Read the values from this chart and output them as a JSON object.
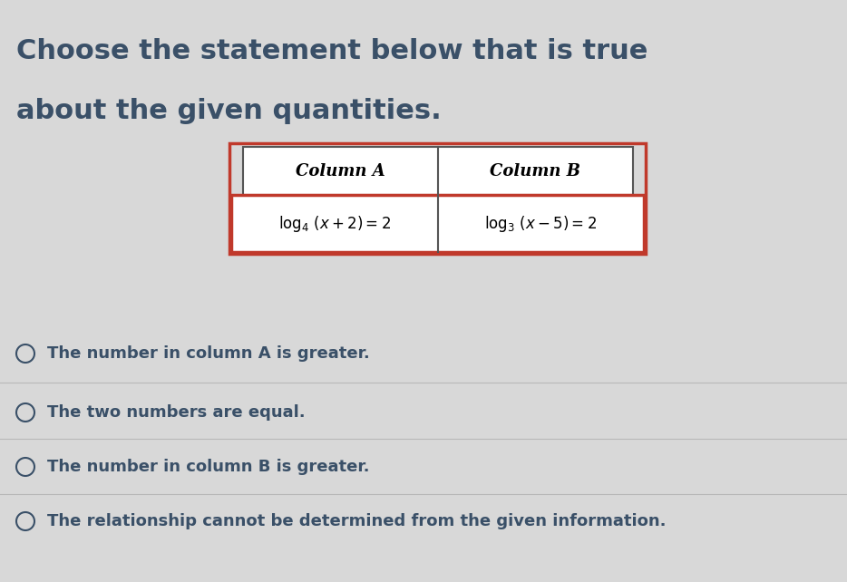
{
  "title_line1": "Choose the statement below that is true",
  "title_line2": "about the given quantities.",
  "col_a_header": "Column A",
  "col_b_header": "Column B",
  "options": [
    "The number in column A is greater.",
    "The two numbers are equal.",
    "The number in column B is greater.",
    "The relationship cannot be determined from the given information."
  ],
  "bg_color": "#d8d8d8",
  "title_color": "#3a5068",
  "table_red_border": "#c0392b",
  "table_gray_border": "#555555",
  "text_color": "#3a5068",
  "option_text_color": "#3a5068",
  "circle_color": "#3a5068",
  "separator_color": "#aaaaaa",
  "title_fontsize": 22,
  "header_fontsize": 13,
  "content_fontsize": 12,
  "option_fontsize": 13
}
